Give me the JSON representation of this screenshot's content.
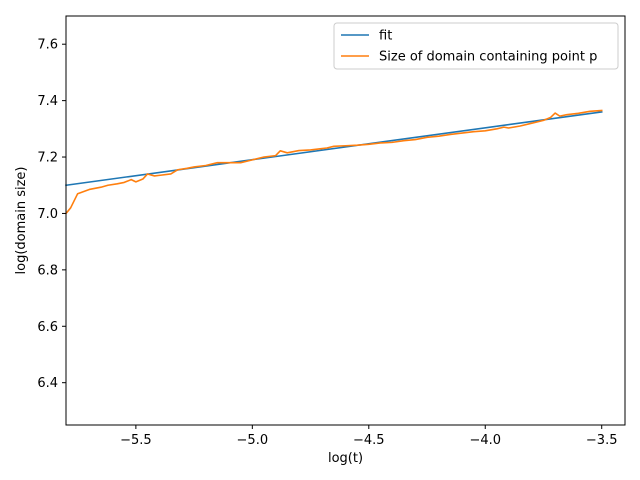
{
  "chart_data": {
    "type": "line",
    "title": "",
    "xlabel": "log(t)",
    "ylabel": "log(domain size)",
    "xlim": [
      -5.8,
      -3.4
    ],
    "ylim": [
      6.25,
      7.7
    ],
    "x_ticks": [
      -5.5,
      -5.0,
      -4.5,
      -4.0,
      -3.5
    ],
    "x_tick_labels": [
      "−5.5",
      "−5.0",
      "−4.5",
      "−4.0",
      "−3.5"
    ],
    "y_ticks": [
      6.4,
      6.6,
      6.8,
      7.0,
      7.2,
      7.4,
      7.6
    ],
    "y_tick_labels": [
      "6.4",
      "6.6",
      "6.8",
      "7.0",
      "7.2",
      "7.4",
      "7.6"
    ],
    "grid": false,
    "legend_position": "top-right",
    "series": [
      {
        "name": "fit",
        "color": "#1f77b4",
        "x": [
          -5.8,
          -3.5
        ],
        "y": [
          7.1,
          7.36
        ]
      },
      {
        "name": "Size of domain containing point p",
        "color": "#ff7f0e",
        "x": [
          -5.8,
          -5.78,
          -5.75,
          -5.7,
          -5.65,
          -5.62,
          -5.58,
          -5.55,
          -5.52,
          -5.5,
          -5.47,
          -5.45,
          -5.42,
          -5.4,
          -5.35,
          -5.32,
          -5.28,
          -5.25,
          -5.2,
          -5.15,
          -5.1,
          -5.05,
          -5.0,
          -4.95,
          -4.9,
          -4.88,
          -4.85,
          -4.8,
          -4.75,
          -4.7,
          -4.68,
          -4.65,
          -4.6,
          -4.55,
          -4.5,
          -4.45,
          -4.4,
          -4.35,
          -4.3,
          -4.25,
          -4.2,
          -4.15,
          -4.1,
          -4.05,
          -4.0,
          -3.95,
          -3.92,
          -3.9,
          -3.85,
          -3.8,
          -3.75,
          -3.72,
          -3.7,
          -3.68,
          -3.65,
          -3.6,
          -3.55,
          -3.5
        ],
        "y": [
          7.0,
          7.02,
          7.07,
          7.085,
          7.093,
          7.1,
          7.105,
          7.11,
          7.12,
          7.112,
          7.122,
          7.14,
          7.133,
          7.135,
          7.14,
          7.155,
          7.16,
          7.165,
          7.17,
          7.18,
          7.18,
          7.18,
          7.19,
          7.2,
          7.205,
          7.222,
          7.215,
          7.223,
          7.225,
          7.23,
          7.232,
          7.238,
          7.24,
          7.242,
          7.245,
          7.25,
          7.252,
          7.258,
          7.262,
          7.27,
          7.274,
          7.28,
          7.285,
          7.29,
          7.293,
          7.3,
          7.306,
          7.303,
          7.31,
          7.32,
          7.33,
          7.34,
          7.356,
          7.345,
          7.35,
          7.355,
          7.362,
          7.365
        ]
      }
    ]
  }
}
